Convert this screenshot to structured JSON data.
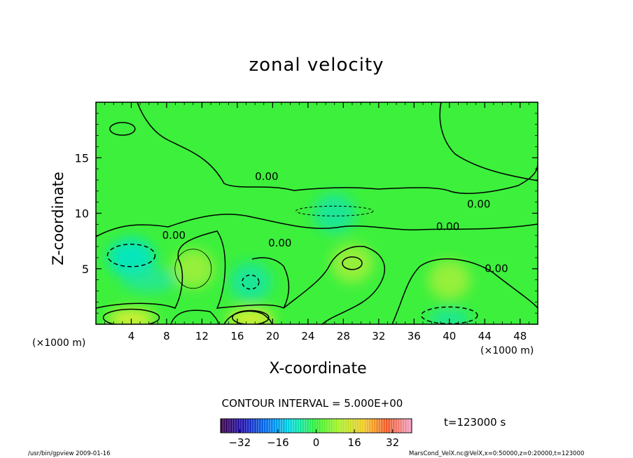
{
  "chart_data": {
    "type": "heatmap",
    "title": "zonal velocity",
    "xlabel": "X-coordinate",
    "ylabel": "Z-coordinate",
    "x_unit_label": "(×1000 m)",
    "x_ticks": [
      "4",
      "8",
      "12",
      "16",
      "20",
      "24",
      "28",
      "32",
      "36",
      "40",
      "44",
      "48"
    ],
    "y_ticks": [
      "5",
      "10",
      "15"
    ],
    "xlim": [
      0,
      50
    ],
    "ylim": [
      0,
      20
    ],
    "contour_interval_text": "CONTOUR INTERVAL = 5.000E+00",
    "contour_labels": [
      "0.00",
      "0.00",
      "0.00",
      "0.00",
      "0.00",
      "0.00"
    ],
    "colorbar": {
      "ticks": [
        "−32",
        "−16",
        "0",
        "16",
        "32"
      ],
      "range": [
        -40,
        40
      ]
    },
    "features": [
      {
        "x": 4,
        "z": 6,
        "value": -10
      },
      {
        "x": 4,
        "z": 0.5,
        "value": 12
      },
      {
        "x": 11,
        "z": 5,
        "value": 7
      },
      {
        "x": 17.5,
        "z": 3.8,
        "value": -8
      },
      {
        "x": 17.5,
        "z": 0.5,
        "value": 11
      },
      {
        "x": 29,
        "z": 5.5,
        "value": 8
      },
      {
        "x": 40,
        "z": 4,
        "value": 7
      },
      {
        "x": 40,
        "z": 0.5,
        "value": -7
      },
      {
        "x": 27,
        "z": 10,
        "value": -4
      }
    ]
  },
  "time_label": "t=123000  s",
  "footer": {
    "left": "/usr/bin/gpview   2009-01-16",
    "right": "MarsCond_VelX.nc@VelX,x=0:50000,z=0:20000,t=123000"
  },
  "colors": {
    "background_field": "#3cf03c",
    "positive": "#c8f032",
    "negative": "#00e6b4"
  }
}
